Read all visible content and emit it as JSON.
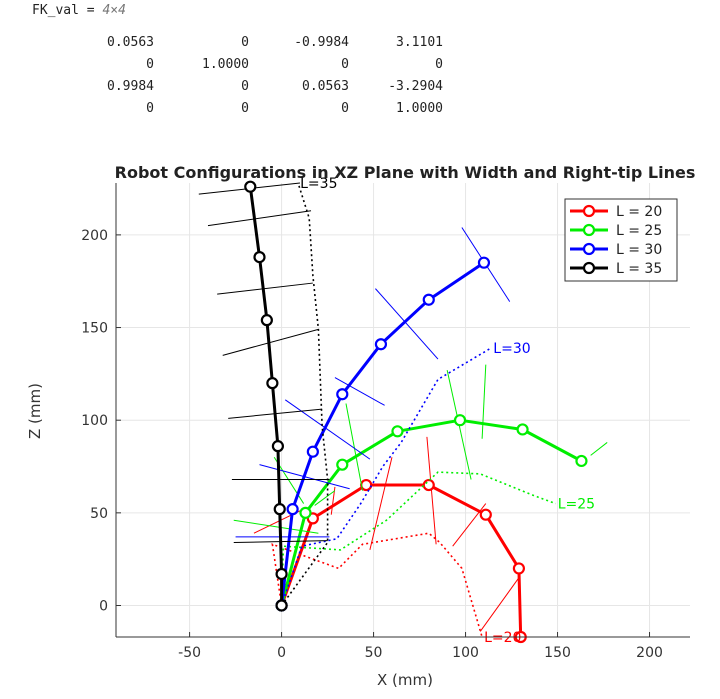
{
  "output": {
    "variable": "FK_val",
    "dims": "4×4",
    "matrix": [
      [
        "0.0563",
        "0",
        "-0.9984",
        "3.1101"
      ],
      [
        "0",
        "1.0000",
        "0",
        "0"
      ],
      [
        "0.9984",
        "0",
        "0.0563",
        "-3.2904"
      ],
      [
        "0",
        "0",
        "0",
        "1.0000"
      ]
    ]
  },
  "chart_data": {
    "type": "line",
    "title": "Robot Configurations in XZ Plane with Width and Right-tip Lines",
    "xlabel": "X (mm)",
    "ylabel": "Z (mm)",
    "xlim": [
      -90,
      222
    ],
    "ylim": [
      -17,
      228
    ],
    "xticks": [
      -50,
      0,
      50,
      100,
      150,
      200
    ],
    "yticks": [
      0,
      50,
      100,
      150,
      200
    ],
    "grid": true,
    "legend_position": "top-right",
    "series": [
      {
        "name": "L = 20",
        "label": "L=20",
        "color": "#ff0000",
        "points": [
          [
            0,
            0
          ],
          [
            17,
            47
          ],
          [
            46,
            65
          ],
          [
            80,
            65
          ],
          [
            111,
            49
          ],
          [
            129,
            20
          ],
          [
            130,
            -17
          ]
        ],
        "tip_line": [
          [
            0,
            0
          ],
          [
            -5,
            33
          ],
          [
            31,
            20
          ],
          [
            44,
            33
          ],
          [
            80,
            39
          ],
          [
            86,
            34
          ],
          [
            98,
            20
          ],
          [
            109,
            -17
          ]
        ],
        "width_lines": [
          [
            [
              -15,
              39
            ],
            [
              14,
              53
            ]
          ],
          [
            [
              29,
              64
            ],
            [
              27,
              49
            ]
          ],
          [
            [
              60,
              80
            ],
            [
              48,
              30
            ]
          ],
          [
            [
              79,
              91
            ],
            [
              84,
              33
            ]
          ],
          [
            [
              111,
              55
            ],
            [
              93,
              32
            ]
          ],
          [
            [
              129,
              15
            ],
            [
              108,
              -14
            ]
          ],
          [
            [
              134,
              -17
            ],
            [
              156,
              -17
            ]
          ]
        ]
      },
      {
        "name": "L = 25",
        "label": "L=25",
        "color": "#00ee00",
        "points": [
          [
            0,
            0
          ],
          [
            13,
            50
          ],
          [
            33,
            76
          ],
          [
            63,
            94
          ],
          [
            97,
            100
          ],
          [
            131,
            95
          ],
          [
            163,
            78
          ]
        ],
        "tip_line": [
          [
            0,
            0
          ],
          [
            1,
            32
          ],
          [
            32,
            30
          ],
          [
            57,
            46
          ],
          [
            85,
            72
          ],
          [
            108,
            71
          ],
          [
            138,
            59
          ],
          [
            149,
            55
          ]
        ],
        "width_lines": [
          [
            [
              -26,
              46
            ],
            [
              20,
              39
            ]
          ],
          [
            [
              18,
              54
            ],
            [
              29,
              62
            ]
          ],
          [
            [
              -4,
              80
            ],
            [
              12,
              55
            ]
          ],
          [
            [
              35,
              109
            ],
            [
              44,
              62
            ]
          ],
          [
            [
              90,
              127
            ],
            [
              103,
              68
            ]
          ],
          [
            [
              111,
              130
            ],
            [
              109,
              90
            ]
          ],
          [
            [
              168,
              81
            ],
            [
              177,
              88
            ]
          ]
        ]
      },
      {
        "name": "L = 30",
        "label": "L=30",
        "color": "#0000ff",
        "points": [
          [
            0,
            0
          ],
          [
            6,
            52
          ],
          [
            17,
            83
          ],
          [
            33,
            114
          ],
          [
            54,
            141
          ],
          [
            80,
            165
          ],
          [
            110,
            185
          ]
        ],
        "tip_line": [
          [
            0,
            0
          ],
          [
            11,
            32
          ],
          [
            30,
            36
          ],
          [
            43,
            55
          ],
          [
            55,
            75
          ],
          [
            65,
            88
          ],
          [
            85,
            122
          ],
          [
            114,
            139
          ]
        ],
        "width_lines": [
          [
            [
              -25,
              37
            ],
            [
              26,
              37
            ]
          ],
          [
            [
              -12,
              76
            ],
            [
              37,
              63
            ]
          ],
          [
            [
              2,
              111
            ],
            [
              48,
              79
            ]
          ],
          [
            [
              29,
              123
            ],
            [
              56,
              108
            ]
          ],
          [
            [
              51,
              171
            ],
            [
              85,
              133
            ]
          ],
          [
            [
              98,
              204
            ],
            [
              124,
              164
            ]
          ]
        ]
      },
      {
        "name": "L = 35",
        "label": "L=35",
        "color": "#000000",
        "points": [
          [
            0,
            0
          ],
          [
            0,
            17
          ],
          [
            -1,
            52
          ],
          [
            -2,
            86
          ],
          [
            -5,
            120
          ],
          [
            -8,
            154
          ],
          [
            -12,
            188
          ],
          [
            -17,
            226
          ]
        ],
        "tip_line": [
          [
            0,
            0
          ],
          [
            25,
            34
          ],
          [
            25,
            68
          ],
          [
            22,
            97
          ],
          [
            20,
            149
          ],
          [
            17,
            178
          ],
          [
            15,
            209
          ],
          [
            9,
            228
          ]
        ],
        "width_lines": [
          [
            [
              -26,
              34
            ],
            [
              25,
              35
            ]
          ],
          [
            [
              -27,
              68
            ],
            [
              26,
              68
            ]
          ],
          [
            [
              -29,
              101
            ],
            [
              22,
              106
            ]
          ],
          [
            [
              -32,
              135
            ],
            [
              20,
              149
            ]
          ],
          [
            [
              -35,
              168
            ],
            [
              17,
              174
            ]
          ],
          [
            [
              -40,
              205
            ],
            [
              16,
              213
            ]
          ],
          [
            [
              -45,
              222
            ],
            [
              10,
              228
            ]
          ]
        ]
      }
    ]
  }
}
